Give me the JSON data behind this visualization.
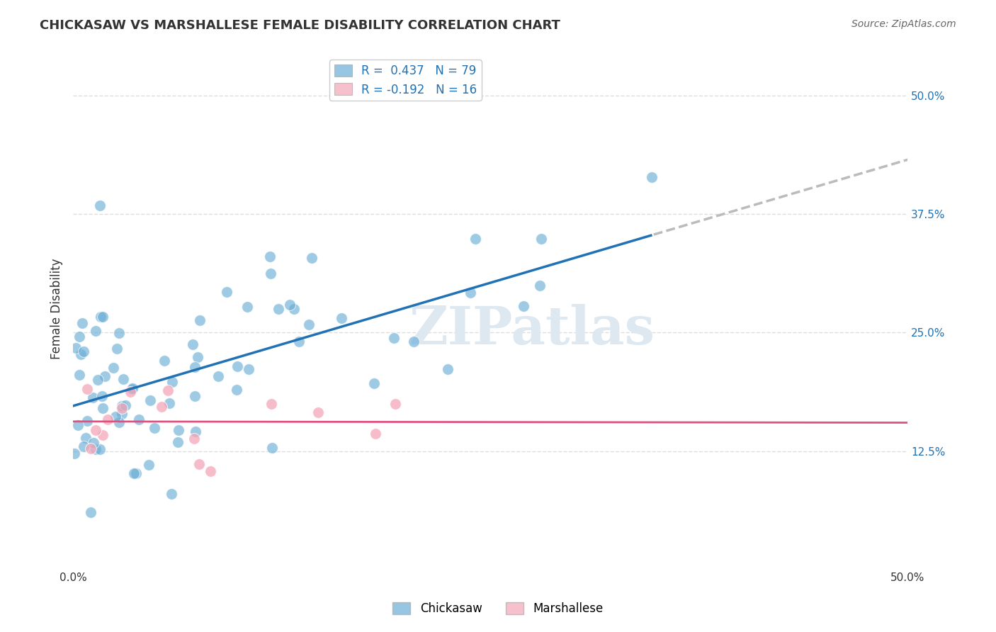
{
  "title": "CHICKASAW VS MARSHALLESE FEMALE DISABILITY CORRELATION CHART",
  "source": "Source: ZipAtlas.com",
  "ylabel": "Female Disability",
  "xlim": [
    0.0,
    0.5
  ],
  "ylim": [
    0.0,
    0.55
  ],
  "ytick_positions": [
    0.125,
    0.25,
    0.375,
    0.5
  ],
  "ytick_labels": [
    "12.5%",
    "25.0%",
    "37.5%",
    "50.0%"
  ],
  "legend_r1": "R =  0.437",
  "legend_n1": "N = 79",
  "legend_r2": "R = -0.192",
  "legend_n2": "N = 16",
  "blue_color": "#6baed6",
  "pink_color": "#f4a6b8",
  "blue_line_color": "#2171b5",
  "pink_line_color": "#e05080",
  "dashed_line_color": "#bbbbbb",
  "grid_color": "#dddddd",
  "background_color": "#ffffff",
  "watermark": "ZIPatlas"
}
